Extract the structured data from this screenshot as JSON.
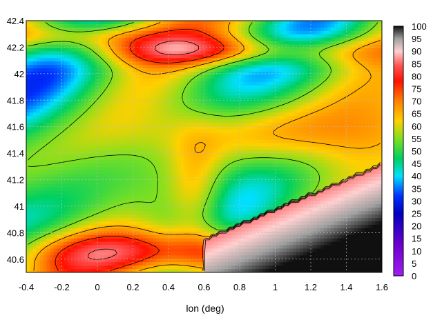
{
  "chart_data": {
    "type": "heatmap",
    "title": "",
    "xlabel": "lon (deg)",
    "ylabel": "",
    "xlim": [
      -0.4,
      1.6
    ],
    "ylim": [
      40.5,
      42.4
    ],
    "x_ticks": [
      -0.4,
      -0.2,
      0,
      0.2,
      0.4,
      0.6,
      0.8,
      1,
      1.2,
      1.4,
      1.6
    ],
    "x_tick_labels": [
      "-0.4",
      "-0.2",
      "0",
      "0.2",
      "0.4",
      "0.6",
      "0.8",
      "1",
      "1.2",
      "1.4",
      "1.6"
    ],
    "y_ticks": [
      40.6,
      40.8,
      41,
      41.2,
      41.4,
      41.6,
      41.8,
      42,
      42.2,
      42.4
    ],
    "y_tick_labels": [
      "40.6",
      "40.8",
      "41",
      "41.2",
      "41.4",
      "41.6",
      "41.8",
      "42",
      "42.2",
      "42.4"
    ],
    "grid": true,
    "colorbar": {
      "range": [
        0,
        100
      ],
      "ticks": [
        0,
        5,
        10,
        15,
        20,
        25,
        30,
        35,
        40,
        45,
        50,
        55,
        60,
        65,
        70,
        75,
        80,
        85,
        90,
        95,
        100
      ],
      "tick_labels": [
        "0",
        "5",
        "10",
        "15",
        "20",
        "25",
        "30",
        "35",
        "40",
        "45",
        "50",
        "55",
        "60",
        "65",
        "70",
        "75",
        "80",
        "85",
        "90",
        "95",
        "100"
      ],
      "stops": [
        {
          "v": 0,
          "color": "#a020f0"
        },
        {
          "v": 12,
          "color": "#7000d0"
        },
        {
          "v": 25,
          "color": "#0000c0"
        },
        {
          "v": 32,
          "color": "#0030ff"
        },
        {
          "v": 40,
          "color": "#00e0ff"
        },
        {
          "v": 47,
          "color": "#00d060"
        },
        {
          "v": 55,
          "color": "#80e020"
        },
        {
          "v": 62,
          "color": "#ffd000"
        },
        {
          "v": 70,
          "color": "#ff8000"
        },
        {
          "v": 78,
          "color": "#ff1000"
        },
        {
          "v": 84,
          "color": "#ff5050"
        },
        {
          "v": 90,
          "color": "#ffd0d0"
        },
        {
          "v": 95,
          "color": "#a0a0a0"
        },
        {
          "v": 100,
          "color": "#101010"
        }
      ]
    },
    "contour_color": "#000000",
    "low_contour_color": "#b000ff"
  }
}
